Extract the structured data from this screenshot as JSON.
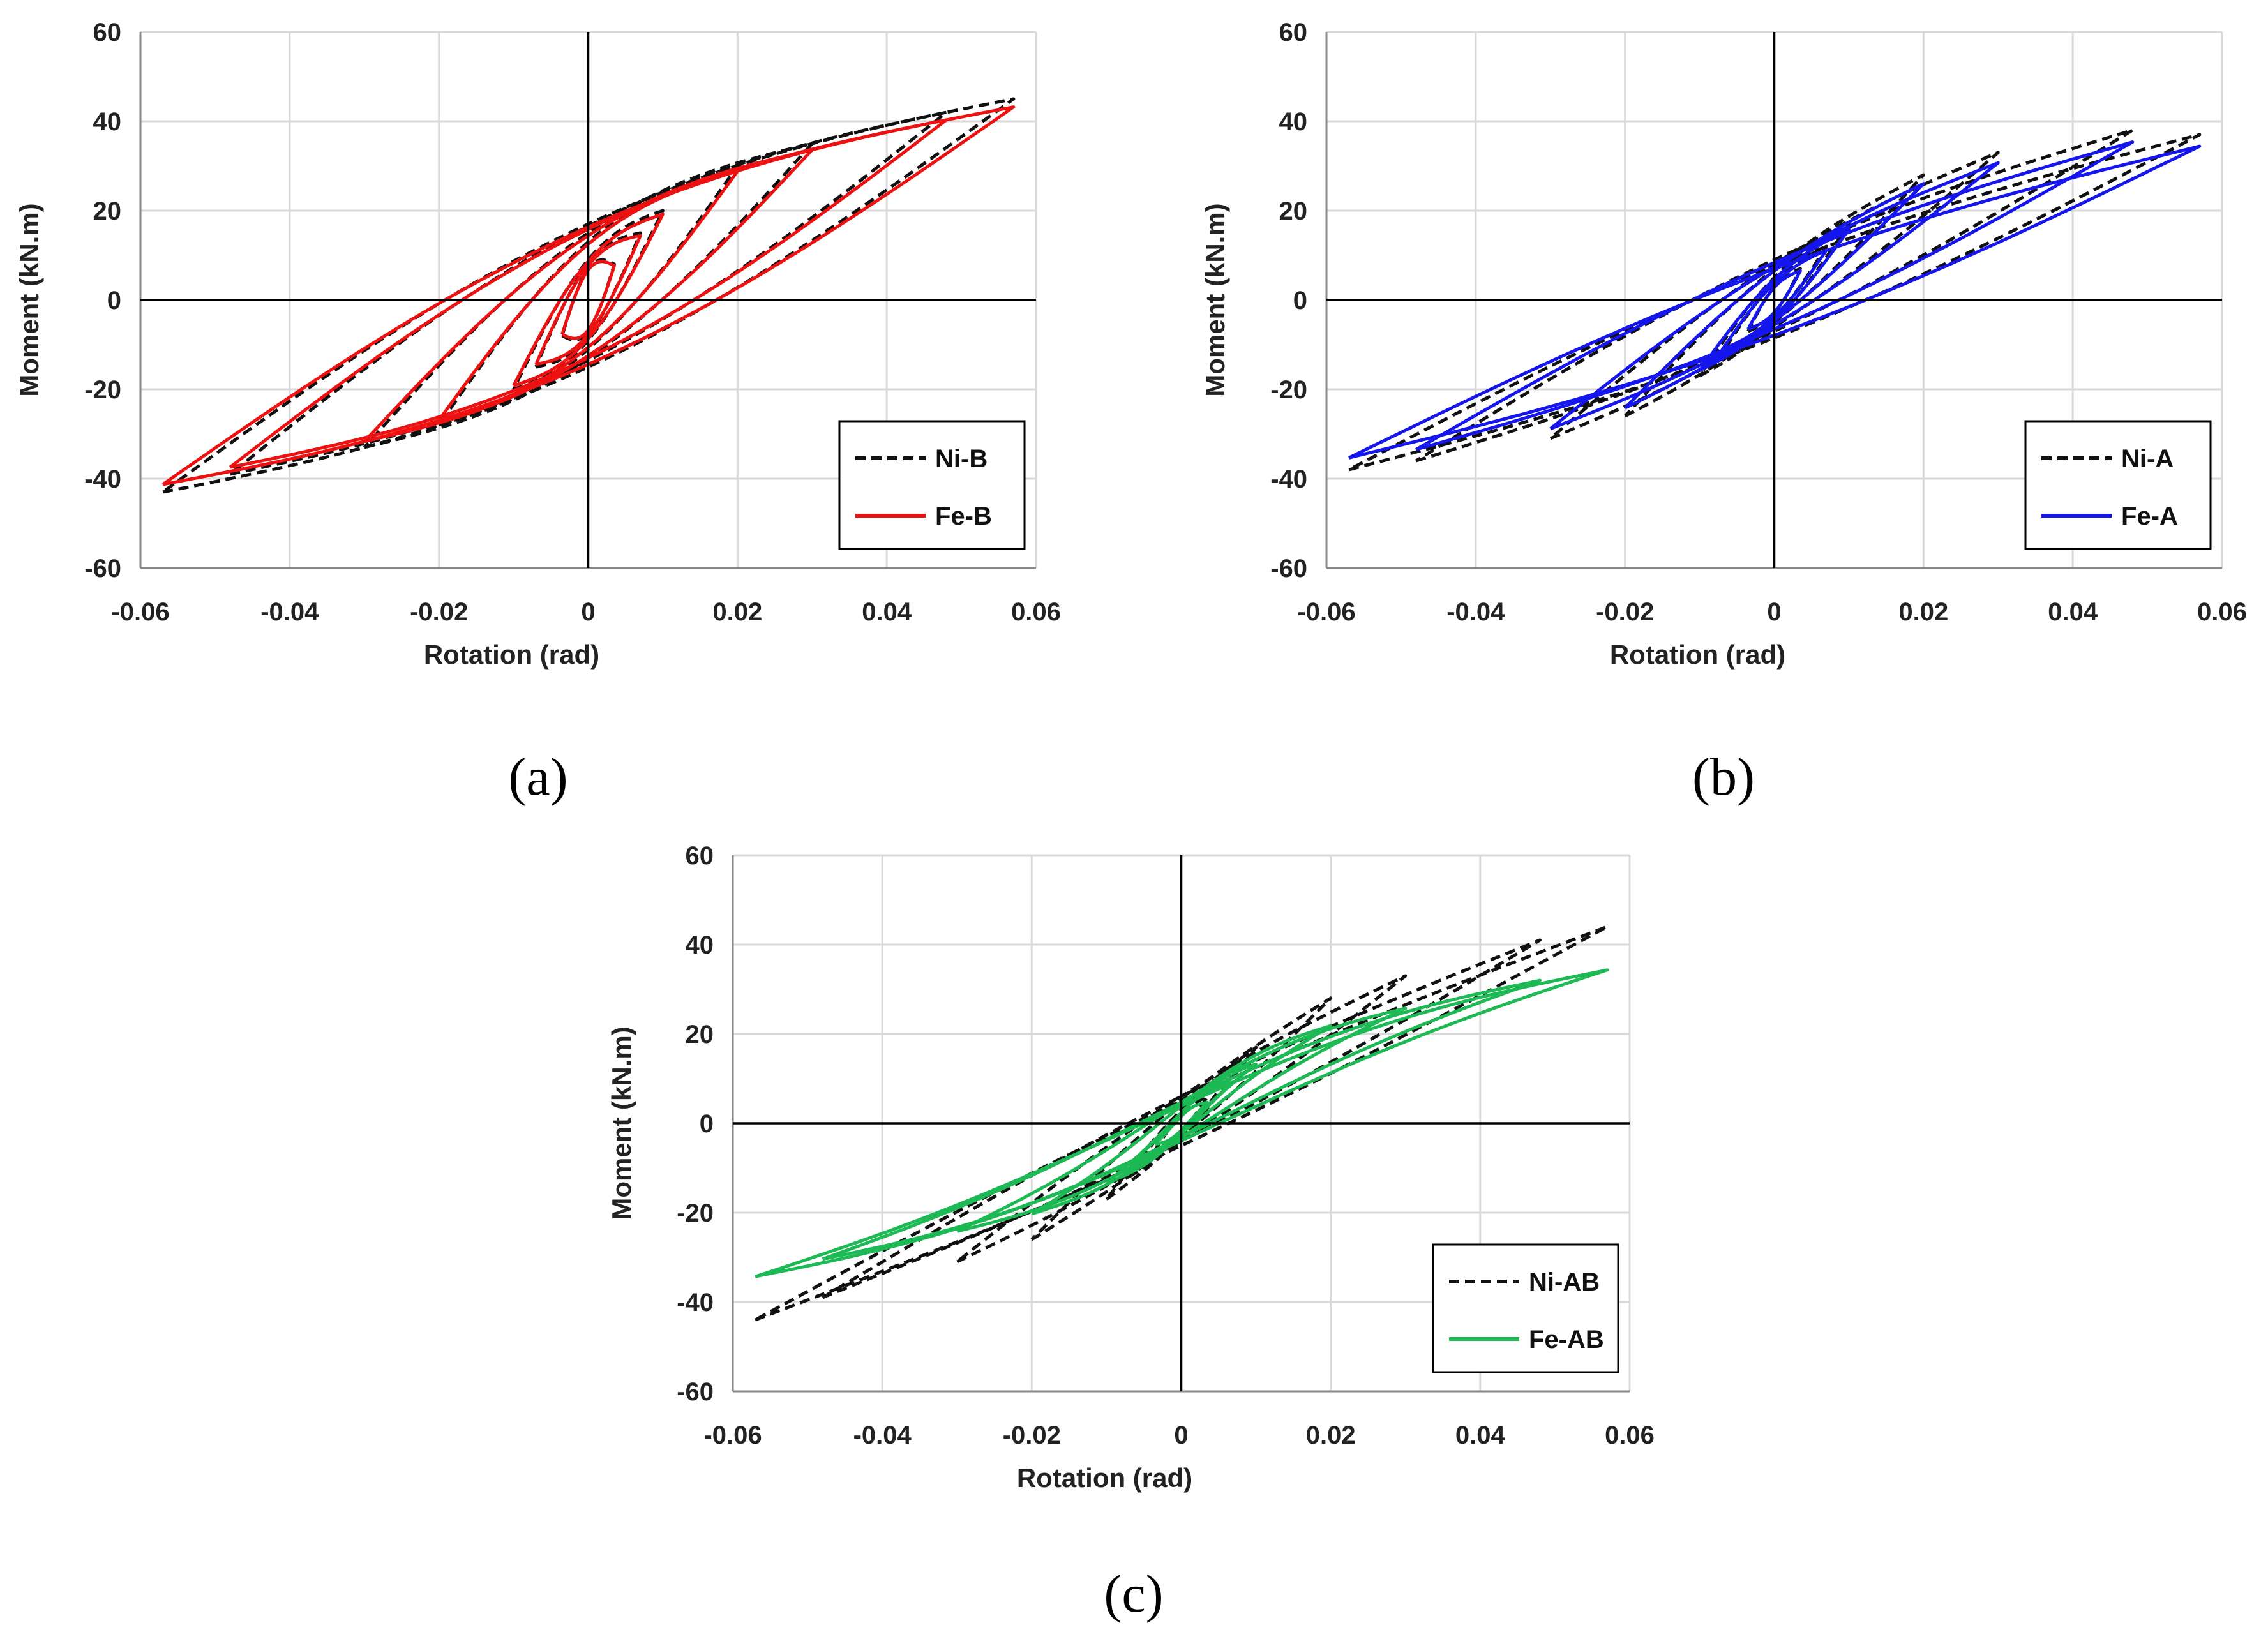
{
  "figure": {
    "captions": [
      "(a)",
      "(b)",
      "(c)"
    ]
  },
  "chart_data": [
    {
      "panel": "(a)",
      "type": "line",
      "title": "",
      "xlabel": "Rotation (rad)",
      "ylabel": "Moment (kN.m)",
      "xlim": [
        -0.06,
        0.06
      ],
      "ylim": [
        -60,
        60
      ],
      "x_ticks": [
        -0.06,
        -0.04,
        -0.02,
        0,
        0.02,
        0.04,
        0.06
      ],
      "x_tick_labels": [
        "-0.06",
        "-0.04",
        "-0.02",
        "0",
        "0.02",
        "0.04",
        "0.06"
      ],
      "y_ticks": [
        -60,
        -40,
        -20,
        0,
        20,
        40,
        60
      ],
      "y_tick_labels": [
        "-60",
        "-40",
        "-20",
        "0",
        "20",
        "40",
        "60"
      ],
      "grid": true,
      "legend_position": "bottom-right",
      "loops": [
        {
          "amp": 0.0035,
          "m_pos": 8,
          "m_neg": -8,
          "w": 7
        },
        {
          "amp": 0.007,
          "m_pos": 15,
          "m_neg": -15,
          "w": 8
        },
        {
          "amp": 0.01,
          "m_pos": 20,
          "m_neg": -20,
          "w": 9
        },
        {
          "amp": 0.02,
          "m_pos": 30,
          "m_neg": -28,
          "w": 12
        },
        {
          "amp": 0.03,
          "m_pos": 35,
          "m_neg": -33,
          "w": 14
        },
        {
          "amp": 0.048,
          "m_pos": 42,
          "m_neg": -39,
          "w": 15
        },
        {
          "amp": 0.057,
          "m_pos": 45,
          "m_neg": -43,
          "w": 16
        }
      ],
      "series": [
        {
          "name": "Ni-B",
          "color": "#111111",
          "dashed": true,
          "scale": 1.0,
          "pinch": 0.0
        },
        {
          "name": "Fe-B",
          "color": "#ee1111",
          "dashed": false,
          "scale": 0.96,
          "pinch": 0.0
        }
      ]
    },
    {
      "panel": "(b)",
      "type": "line",
      "title": "",
      "xlabel": "Rotation (rad)",
      "ylabel": "Moment (kN.m)",
      "xlim": [
        -0.06,
        0.06
      ],
      "ylim": [
        -60,
        60
      ],
      "x_ticks": [
        -0.06,
        -0.04,
        -0.02,
        0,
        0.02,
        0.04,
        0.06
      ],
      "x_tick_labels": [
        "-0.06",
        "-0.04",
        "-0.02",
        "0",
        "0.02",
        "0.04",
        "0.06"
      ],
      "y_ticks": [
        -60,
        -40,
        -20,
        0,
        20,
        40,
        60
      ],
      "y_tick_labels": [
        "-60",
        "-40",
        "-20",
        "0",
        "20",
        "40",
        "60"
      ],
      "grid": true,
      "legend_position": "bottom-right",
      "loops": [
        {
          "amp": 0.0035,
          "m_pos": 7,
          "m_neg": -7,
          "w": 3
        },
        {
          "amp": 0.007,
          "m_pos": 12,
          "m_neg": -12,
          "w": 4
        },
        {
          "amp": 0.01,
          "m_pos": 17,
          "m_neg": -17,
          "w": 5
        },
        {
          "amp": 0.02,
          "m_pos": 28,
          "m_neg": -26,
          "w": 6
        },
        {
          "amp": 0.03,
          "m_pos": 33,
          "m_neg": -31,
          "w": 7
        },
        {
          "amp": 0.048,
          "m_pos": 38,
          "m_neg": -36,
          "w": 8
        },
        {
          "amp": 0.057,
          "m_pos": 37,
          "m_neg": -38,
          "w": 8
        }
      ],
      "series": [
        {
          "name": "Ni-A",
          "color": "#111111",
          "dashed": true,
          "scale": 1.0,
          "pinch": 0.0
        },
        {
          "name": "Fe-A",
          "color": "#1515ee",
          "dashed": false,
          "scale": 0.93,
          "pinch": 0.0
        }
      ]
    },
    {
      "panel": "(c)",
      "type": "line",
      "title": "",
      "xlabel": "Rotation (rad)",
      "ylabel": "Moment (kN.m)",
      "xlim": [
        -0.06,
        0.06
      ],
      "ylim": [
        -60,
        60
      ],
      "x_ticks": [
        -0.06,
        -0.04,
        -0.02,
        0,
        0.02,
        0.04,
        0.06
      ],
      "x_tick_labels": [
        "-0.06",
        "-0.04",
        "-0.02",
        "0",
        "0.02",
        "0.04",
        "0.06"
      ],
      "y_ticks": [
        -60,
        -40,
        -20,
        0,
        20,
        40,
        60
      ],
      "y_tick_labels": [
        "-60",
        "-40",
        "-20",
        "0",
        "20",
        "40",
        "60"
      ],
      "grid": true,
      "legend_position": "bottom-right",
      "loops": [
        {
          "amp": 0.0035,
          "m_pos": 6,
          "m_neg": -6,
          "w": 2
        },
        {
          "amp": 0.007,
          "m_pos": 12,
          "m_neg": -12,
          "w": 3
        },
        {
          "amp": 0.01,
          "m_pos": 17,
          "m_neg": -17,
          "w": 3
        },
        {
          "amp": 0.02,
          "m_pos": 28,
          "m_neg": -26,
          "w": 4
        },
        {
          "amp": 0.03,
          "m_pos": 33,
          "m_neg": -31,
          "w": 5
        },
        {
          "amp": 0.048,
          "m_pos": 41,
          "m_neg": -39,
          "w": 5
        },
        {
          "amp": 0.057,
          "m_pos": 44,
          "m_neg": -44,
          "w": 5
        }
      ],
      "series": [
        {
          "name": "Ni-AB",
          "color": "#111111",
          "dashed": true,
          "scale": 1.0,
          "pinch": 0.0
        },
        {
          "name": "Fe-AB",
          "color": "#1db954",
          "dashed": false,
          "scale": 0.78,
          "pinch": 0.35
        }
      ]
    }
  ]
}
